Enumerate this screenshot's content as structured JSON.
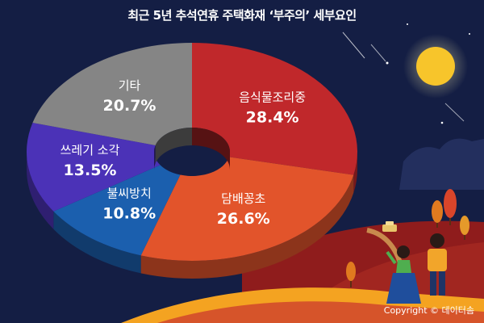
{
  "title": "최근 5년 추석연휴 주택화재 ‘부주의’ 세부요인",
  "copyright": "Copyright © 데이터솜",
  "chart_data": {
    "type": "pie",
    "style": "3d-donut",
    "slices": [
      {
        "label": "음식물조리중",
        "value": 28.4,
        "display": "28.4%",
        "color": "#c0282b"
      },
      {
        "label": "담배꽁초",
        "value": 26.6,
        "display": "26.6%",
        "color": "#e2542b"
      },
      {
        "label": "불씨방치",
        "value": 10.8,
        "display": "10.8%",
        "color": "#1b5fae"
      },
      {
        "label": "쓰레기 소각",
        "value": 13.5,
        "display": "13.5%",
        "color": "#4b32b7"
      },
      {
        "label": "기타",
        "value": 20.7,
        "display": "20.7%",
        "color": "#858585"
      }
    ]
  }
}
